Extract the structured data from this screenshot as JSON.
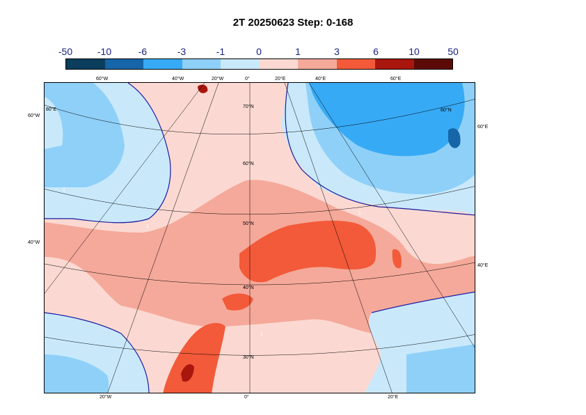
{
  "title": "2T 20250623 Step: 0-168",
  "colorbar": {
    "labels": [
      "-50",
      "-10",
      "-6",
      "-3",
      "-1",
      "0",
      "1",
      "3",
      "6",
      "10",
      "50"
    ],
    "colors": [
      "#0b3d5c",
      "#1565a8",
      "#37aaf5",
      "#8fd0f8",
      "#c9e9fb",
      "#fbd9d2",
      "#f5a99a",
      "#f25a3a",
      "#a8160d",
      "#5c0a07"
    ]
  },
  "map": {
    "lon_labels_top": [
      "60°W",
      "40°W",
      "20°W",
      "0°",
      "20°E",
      "40°E",
      "60°E"
    ],
    "lon_labels_bottom": [
      "20°W",
      "0°",
      "20°E"
    ],
    "lat_labels_left": [
      "60°W",
      "40°W"
    ],
    "lat_labels_right": [
      "60°E",
      "40°E"
    ],
    "lat_labels_inner": [
      "70°N",
      "60°N",
      "50°N",
      "40°N",
      "30°N",
      "80°E",
      "60°N"
    ],
    "contour_label": "1"
  }
}
